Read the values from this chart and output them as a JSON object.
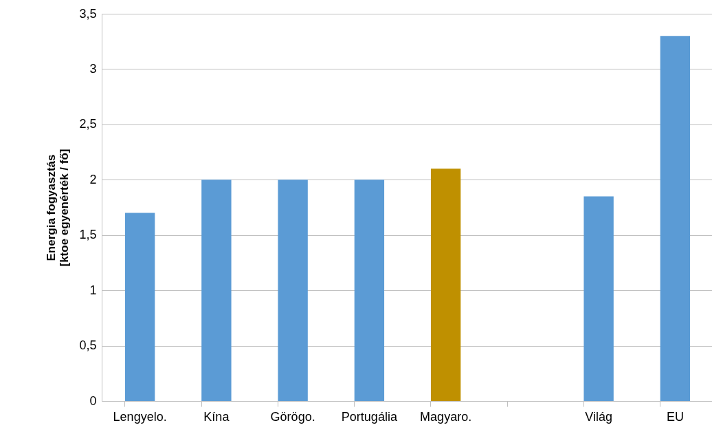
{
  "chart_data": {
    "type": "bar",
    "ylabel": "Energia fogyasztás\n[ktoe egyenérték / fő]",
    "categories": [
      "Lengyelo.",
      "Kína",
      "Görögo.",
      "Portugália",
      "Magyaro.",
      null,
      "Világ",
      "EU"
    ],
    "values": [
      1.7,
      2.0,
      2.0,
      2.0,
      2.1,
      null,
      1.85,
      3.3
    ],
    "colors": [
      "#5b9bd5",
      "#5b9bd5",
      "#5b9bd5",
      "#5b9bd5",
      "#bf9000",
      "#5b9bd5",
      "#5b9bd5",
      "#5b9bd5"
    ],
    "ylim": [
      0,
      3.5
    ],
    "yticks": [
      0,
      {
        "value": 0.5,
        "label": "0,5"
      },
      1,
      {
        "value": 1.5,
        "label": "1,5"
      },
      2,
      {
        "value": 2.5,
        "label": "2,5"
      },
      3,
      {
        "value": 3.5,
        "label": "3,5"
      }
    ],
    "grid": "y"
  }
}
